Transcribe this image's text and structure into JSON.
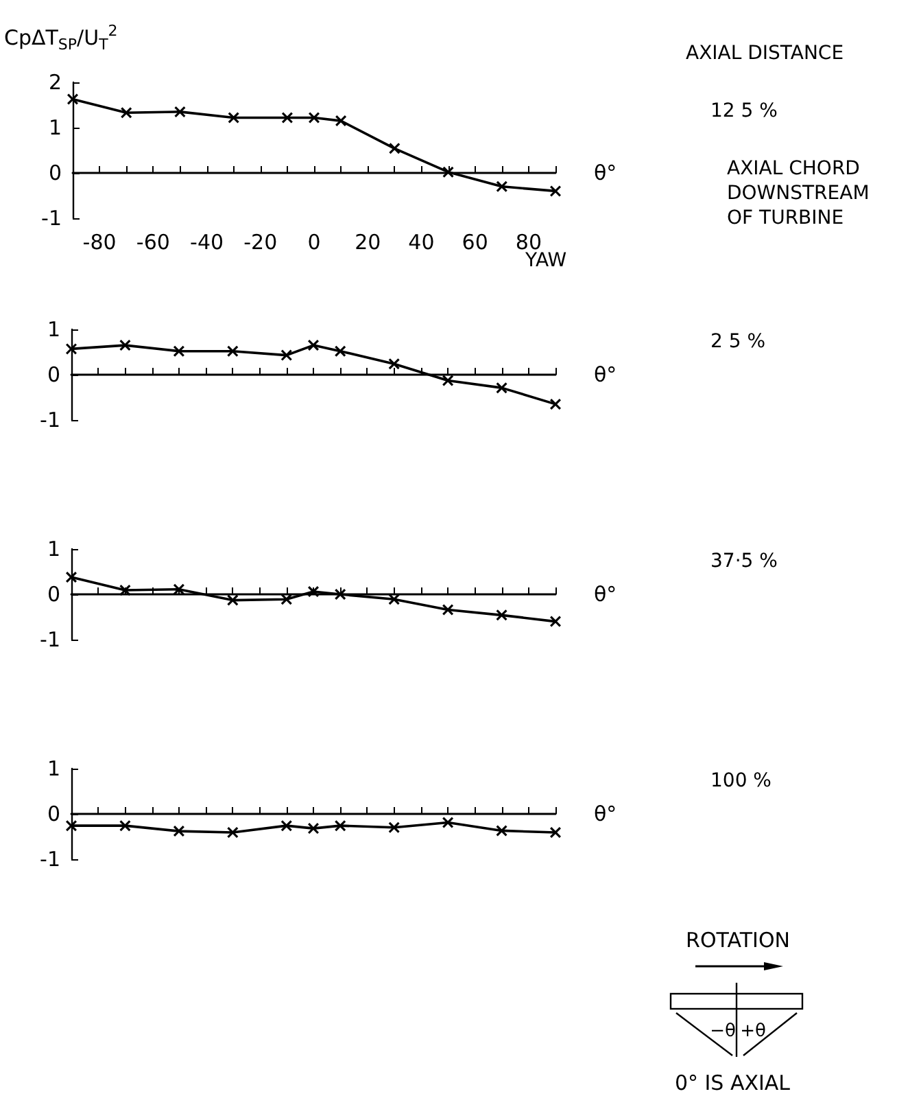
{
  "chart_data": [
    {
      "type": "line",
      "ylabel": "CpΔT$_{SP}$/U$_{T}$$^{2}$",
      "xlabel": "θ°",
      "x": [
        -90,
        -70,
        -50,
        -30,
        -10,
        0,
        10,
        30,
        50,
        70,
        90
      ],
      "series": [
        {
          "color": "#000000",
          "values": [
            1.63,
            1.33,
            1.35,
            1.22,
            1.22,
            1.22,
            1.15,
            0.54,
            0.02,
            -0.3,
            -0.4
          ]
        }
      ],
      "xlim": [
        -90,
        90
      ],
      "xticks": [
        {
          "value": -90,
          "label": null
        },
        -80,
        {
          "value": -70,
          "label": null
        },
        -60,
        {
          "value": -50,
          "label": null
        },
        -40,
        {
          "value": -30,
          "label": null
        },
        -20,
        {
          "value": -10,
          "label": null
        },
        0,
        {
          "value": 10,
          "label": null
        },
        20,
        {
          "value": 30,
          "label": null
        },
        40,
        {
          "value": 50,
          "label": null
        },
        60,
        {
          "value": 70,
          "label": null
        },
        80,
        {
          "value": 90,
          "label": null
        }
      ],
      "ylim": [
        -1,
        2
      ],
      "yticks": [
        -1,
        0,
        1,
        2
      ],
      "marker": "cross",
      "annotations": [
        "AXIAL DISTANCE",
        "12 5 %",
        "AXIAL CHORD DOWNSTREAM OF TURBINE",
        "YAW"
      ]
    },
    {
      "type": "line",
      "xlabel": "θ°",
      "x": [
        -90,
        -70,
        -50,
        -30,
        -10,
        0,
        10,
        30,
        50,
        70,
        90
      ],
      "series": [
        {
          "color": "#000000",
          "values": [
            0.57,
            0.65,
            0.52,
            0.52,
            0.43,
            0.65,
            0.52,
            0.24,
            -0.13,
            -0.29,
            -0.65
          ]
        }
      ],
      "xlim": [
        -90,
        90
      ],
      "xticks": [
        {
          "value": -90,
          "label": null
        },
        {
          "value": -80,
          "label": null
        },
        {
          "value": -70,
          "label": null
        },
        {
          "value": -60,
          "label": null
        },
        {
          "value": -50,
          "label": null
        },
        {
          "value": -40,
          "label": null
        },
        {
          "value": -30,
          "label": null
        },
        {
          "value": -20,
          "label": null
        },
        {
          "value": -10,
          "label": null
        },
        {
          "value": 0,
          "label": null
        },
        {
          "value": 10,
          "label": null
        },
        {
          "value": 20,
          "label": null
        },
        {
          "value": 30,
          "label": null
        },
        {
          "value": 40,
          "label": null
        },
        {
          "value": 50,
          "label": null
        },
        {
          "value": 60,
          "label": null
        },
        {
          "value": 70,
          "label": null
        },
        {
          "value": 80,
          "label": null
        },
        {
          "value": 90,
          "label": null
        }
      ],
      "ylim": [
        -1,
        1
      ],
      "yticks": [
        -1,
        0,
        1
      ],
      "tick_labels": "y",
      "marker": "cross",
      "annotations": [
        "2 5 %"
      ]
    },
    {
      "type": "line",
      "xlabel": "θ°",
      "x": [
        -90,
        -70,
        -50,
        -30,
        -10,
        0,
        10,
        30,
        50,
        70,
        90
      ],
      "series": [
        {
          "color": "#000000",
          "values": [
            0.38,
            0.09,
            0.11,
            -0.13,
            -0.11,
            0.06,
            0,
            -0.11,
            -0.34,
            -0.46,
            -0.6
          ]
        }
      ],
      "xlim": [
        -90,
        90
      ],
      "xticks": [
        {
          "value": -90,
          "label": null
        },
        {
          "value": -80,
          "label": null
        },
        {
          "value": -70,
          "label": null
        },
        {
          "value": -60,
          "label": null
        },
        {
          "value": -50,
          "label": null
        },
        {
          "value": -40,
          "label": null
        },
        {
          "value": -30,
          "label": null
        },
        {
          "value": -20,
          "label": null
        },
        {
          "value": -10,
          "label": null
        },
        {
          "value": 0,
          "label": null
        },
        {
          "value": 10,
          "label": null
        },
        {
          "value": 20,
          "label": null
        },
        {
          "value": 30,
          "label": null
        },
        {
          "value": 40,
          "label": null
        },
        {
          "value": 50,
          "label": null
        },
        {
          "value": 60,
          "label": null
        },
        {
          "value": 70,
          "label": null
        },
        {
          "value": 80,
          "label": null
        },
        {
          "value": 90,
          "label": null
        }
      ],
      "ylim": [
        -1,
        1
      ],
      "yticks": [
        -1,
        0,
        1
      ],
      "tick_labels": "y",
      "marker": "cross",
      "annotations": [
        "37·5 %"
      ]
    },
    {
      "type": "line",
      "xlabel": "θ°",
      "x": [
        -90,
        -70,
        -50,
        -30,
        -10,
        0,
        10,
        30,
        50,
        70,
        90
      ],
      "series": [
        {
          "color": "#000000",
          "values": [
            -0.26,
            -0.26,
            -0.38,
            -0.41,
            -0.26,
            -0.32,
            -0.26,
            -0.3,
            -0.19,
            -0.37,
            -0.41
          ]
        }
      ],
      "xlim": [
        -90,
        90
      ],
      "xticks": [
        {
          "value": -90,
          "label": null
        },
        {
          "value": -80,
          "label": null
        },
        {
          "value": -70,
          "label": null
        },
        {
          "value": -60,
          "label": null
        },
        {
          "value": -50,
          "label": null
        },
        {
          "value": -40,
          "label": null
        },
        {
          "value": -30,
          "label": null
        },
        {
          "value": -20,
          "label": null
        },
        {
          "value": -10,
          "label": null
        },
        {
          "value": 0,
          "label": null
        },
        {
          "value": 10,
          "label": null
        },
        {
          "value": 20,
          "label": null
        },
        {
          "value": 30,
          "label": null
        },
        {
          "value": 40,
          "label": null
        },
        {
          "value": 50,
          "label": null
        },
        {
          "value": 60,
          "label": null
        },
        {
          "value": 70,
          "label": null
        },
        {
          "value": 80,
          "label": null
        },
        {
          "value": 90,
          "label": null
        }
      ],
      "ylim": [
        -1,
        1
      ],
      "yticks": [
        -1,
        0,
        1
      ],
      "tick_labels": "y",
      "marker": "cross",
      "annotations": [
        "100 %"
      ]
    },
    {
      "type": "other",
      "annotations": [
        "ROTATION",
        "−θ",
        "+θ",
        "0° IS AXIAL"
      ]
    }
  ]
}
